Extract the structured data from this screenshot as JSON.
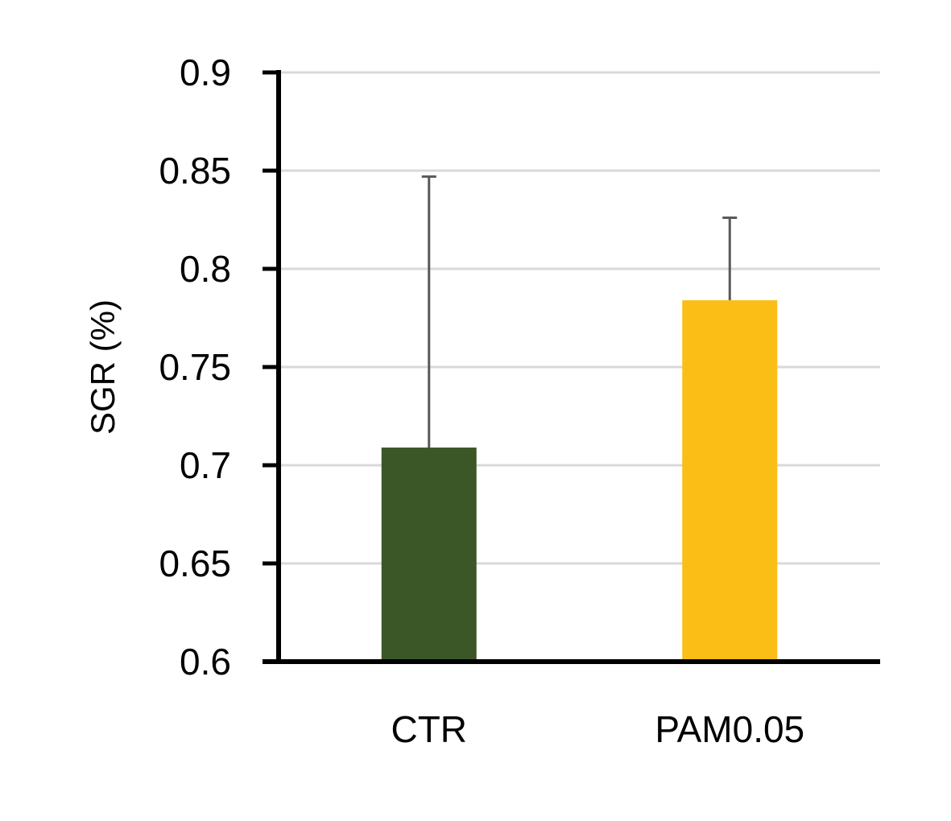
{
  "chart_data": {
    "type": "bar",
    "title": "",
    "xlabel": "",
    "ylabel": "SGR (%)",
    "categories": [
      "CTR",
      "PAM0.05"
    ],
    "values": [
      0.709,
      0.784
    ],
    "error_upper": [
      0.847,
      0.826
    ],
    "colors": [
      "#3b5728",
      "#fbbe17"
    ],
    "ylim": [
      0.6,
      0.9
    ],
    "yticks": [
      "0.6",
      "0.65",
      "0.7",
      "0.75",
      "0.8",
      "0.85",
      "0.9"
    ],
    "grid": true,
    "legend": "none"
  }
}
